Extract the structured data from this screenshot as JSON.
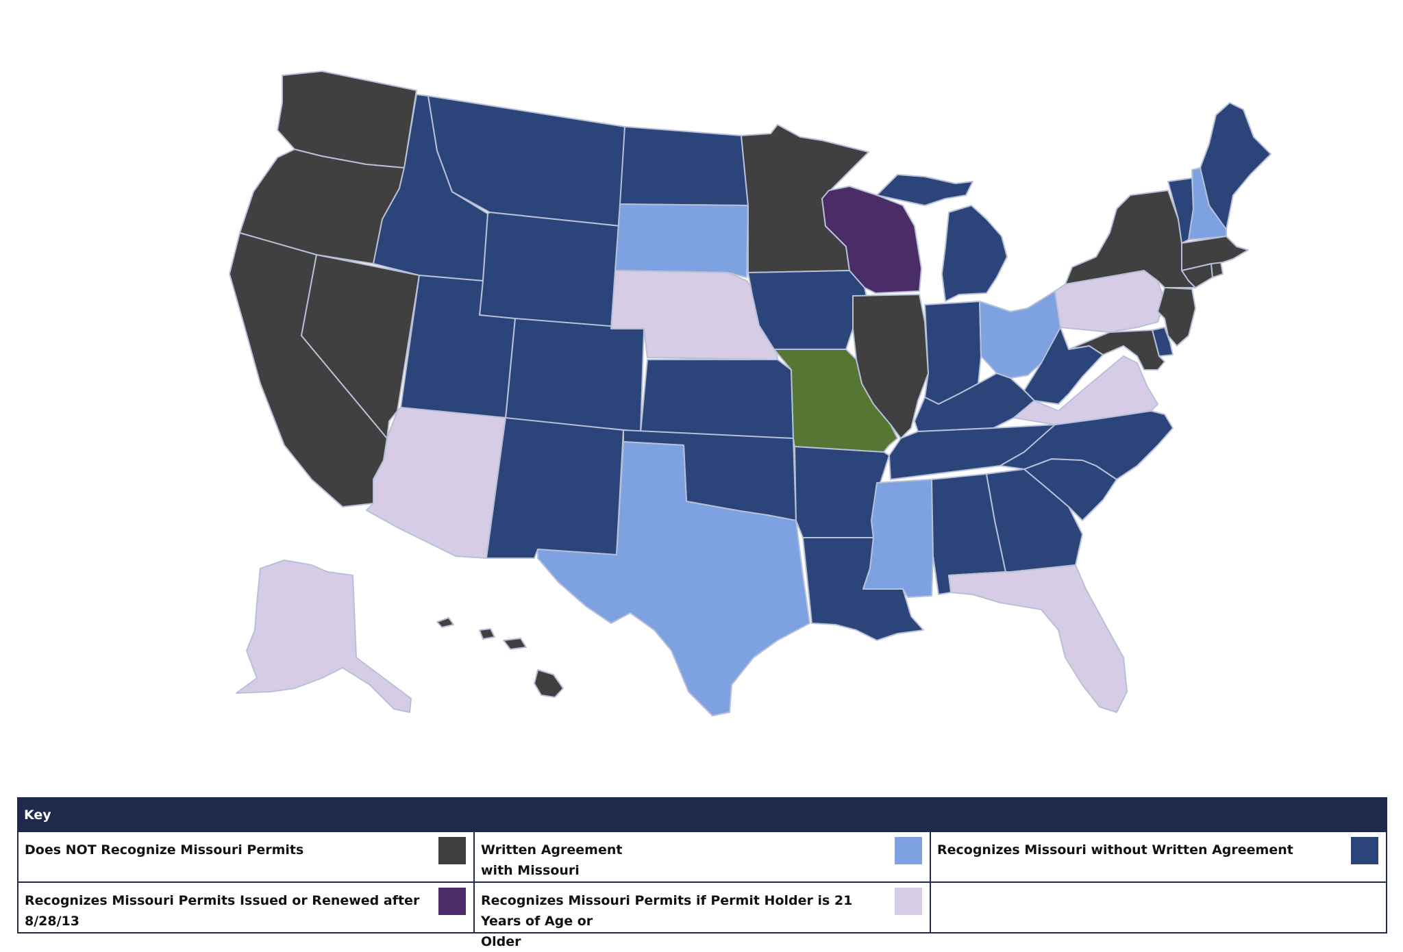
{
  "colors": {
    "no_recognition": "#404040",
    "written_agreement": "#7ea2e1",
    "recognizes_without_agreement": "#2b4479",
    "issued_after_date": "#4a2c66",
    "age_21_or_older": "#d6cce6",
    "missouri": "#557733"
  },
  "legend": {
    "title": "Key",
    "items": [
      {
        "label_line1": "Does NOT Recognize Missouri Permits",
        "label_line2": "",
        "color_key": "no_recognition"
      },
      {
        "label_line1": "Written Agreement",
        "label_line2": "with Missouri",
        "color_key": "written_agreement"
      },
      {
        "label_line1": "Recognizes Missouri without Written Agreement",
        "label_line2": "",
        "color_key": "recognizes_without_agreement"
      },
      {
        "label_line1": "Recognizes Missouri Permits Issued or Renewed after 8/28/13",
        "label_line2": "",
        "color_key": "issued_after_date"
      },
      {
        "label_line1": "Recognizes Missouri Permits if Permit Holder is 21 Years of Age or",
        "label_line2": "Older",
        "color_key": "age_21_or_older"
      }
    ]
  },
  "states": {
    "WA": "no_recognition",
    "OR": "no_recognition",
    "CA": "no_recognition",
    "NV": "no_recognition",
    "ID": "recognizes_without_agreement",
    "MT": "recognizes_without_agreement",
    "WY": "recognizes_without_agreement",
    "UT": "recognizes_without_agreement",
    "CO": "recognizes_without_agreement",
    "AZ": "age_21_or_older",
    "NM": "recognizes_without_agreement",
    "ND": "recognizes_without_agreement",
    "SD": "written_agreement",
    "NE": "age_21_or_older",
    "KS": "recognizes_without_agreement",
    "OK": "recognizes_without_agreement",
    "TX": "written_agreement",
    "MN": "no_recognition",
    "IA": "recognizes_without_agreement",
    "MO": "missouri",
    "AR": "recognizes_without_agreement",
    "LA": "recognizes_without_agreement",
    "WI": "issued_after_date",
    "IL": "no_recognition",
    "MI": "recognizes_without_agreement",
    "IN": "recognizes_without_agreement",
    "OH": "written_agreement",
    "KY": "recognizes_without_agreement",
    "TN": "recognizes_without_agreement",
    "MS": "written_agreement",
    "AL": "recognizes_without_agreement",
    "GA": "recognizes_without_agreement",
    "FL": "age_21_or_older",
    "SC": "recognizes_without_agreement",
    "NC": "recognizes_without_agreement",
    "VA": "age_21_or_older",
    "WV": "recognizes_without_agreement",
    "PA": "age_21_or_older",
    "NY": "no_recognition",
    "NJ": "no_recognition",
    "DE": "recognizes_without_agreement",
    "MD": "no_recognition",
    "CT": "no_recognition",
    "RI": "no_recognition",
    "MA": "no_recognition",
    "VT": "recognizes_without_agreement",
    "NH": "written_agreement",
    "ME": "recognizes_without_agreement",
    "AK": "age_21_or_older",
    "HI": "no_recognition"
  }
}
